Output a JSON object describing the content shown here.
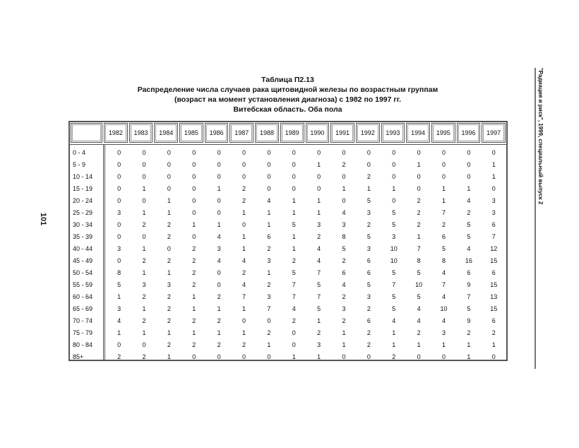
{
  "title": {
    "line1": "Таблица П2.13",
    "line2": "Распределение числа случаев рака щитовидной железы по возрастным группам",
    "line3": "(возраст на момент установления диагноза) с 1982 по 1997 гг.",
    "line4": "Витебская область. Оба пола"
  },
  "page_number": "101",
  "running_header": "\"Радиация и риск\", 1999, специальный выпуск 2",
  "table": {
    "columns": [
      "1982",
      "1983",
      "1984",
      "1985",
      "1986",
      "1987",
      "1988",
      "1989",
      "1990",
      "1991",
      "1992",
      "1993",
      "1994",
      "1995",
      "1996",
      "1997"
    ],
    "rows": [
      {
        "label": "0 - 4",
        "values": [
          "0",
          "0",
          "0",
          "0",
          "0",
          "0",
          "0",
          "0",
          "0",
          "0",
          "0",
          "0",
          "0",
          "0",
          "0",
          "0"
        ]
      },
      {
        "label": "5 - 9",
        "values": [
          "0",
          "0",
          "0",
          "0",
          "0",
          "0",
          "0",
          "0",
          "1",
          "2",
          "0",
          "0",
          "1",
          "0",
          "0",
          "1"
        ]
      },
      {
        "label": "10 - 14",
        "values": [
          "0",
          "0",
          "0",
          "0",
          "0",
          "0",
          "0",
          "0",
          "0",
          "0",
          "2",
          "0",
          "0",
          "0",
          "0",
          "1"
        ]
      },
      {
        "label": "15 - 19",
        "values": [
          "0",
          "1",
          "0",
          "0",
          "1",
          "2",
          "0",
          "0",
          "0",
          "1",
          "1",
          "1",
          "0",
          "1",
          "1",
          "0"
        ]
      },
      {
        "label": "20 - 24",
        "values": [
          "0",
          "0",
          "1",
          "0",
          "0",
          "2",
          "4",
          "1",
          "1",
          "0",
          "5",
          "0",
          "2",
          "1",
          "4",
          "3"
        ]
      },
      {
        "label": "25 - 29",
        "values": [
          "3",
          "1",
          "1",
          "0",
          "0",
          "1",
          "1",
          "1",
          "1",
          "4",
          "3",
          "5",
          "2",
          "7",
          "2",
          "3"
        ]
      },
      {
        "label": "30 - 34",
        "values": [
          "0",
          "2",
          "2",
          "1",
          "1",
          "0",
          "1",
          "5",
          "3",
          "3",
          "2",
          "5",
          "2",
          "2",
          "5",
          "6"
        ]
      },
      {
        "label": "35 - 39",
        "values": [
          "0",
          "0",
          "2",
          "0",
          "4",
          "1",
          "6",
          "1",
          "2",
          "8",
          "5",
          "3",
          "1",
          "6",
          "5",
          "7"
        ]
      },
      {
        "label": "40 - 44",
        "values": [
          "3",
          "1",
          "0",
          "2",
          "3",
          "1",
          "2",
          "1",
          "4",
          "5",
          "3",
          "10",
          "7",
          "5",
          "4",
          "12"
        ]
      },
      {
        "label": "45 - 49",
        "values": [
          "0",
          "2",
          "2",
          "2",
          "4",
          "4",
          "3",
          "2",
          "4",
          "2",
          "6",
          "10",
          "8",
          "8",
          "16",
          "15"
        ]
      },
      {
        "label": "50 - 54",
        "values": [
          "8",
          "1",
          "1",
          "2",
          "0",
          "2",
          "1",
          "5",
          "7",
          "6",
          "6",
          "5",
          "5",
          "4",
          "6",
          "6"
        ]
      },
      {
        "label": "55 - 59",
        "values": [
          "5",
          "3",
          "3",
          "2",
          "0",
          "4",
          "2",
          "7",
          "5",
          "4",
          "5",
          "7",
          "10",
          "7",
          "9",
          "15"
        ]
      },
      {
        "label": "60 - 64",
        "values": [
          "1",
          "2",
          "2",
          "1",
          "2",
          "7",
          "3",
          "7",
          "7",
          "2",
          "3",
          "5",
          "5",
          "4",
          "7",
          "13"
        ]
      },
      {
        "label": "65 - 69",
        "values": [
          "3",
          "1",
          "2",
          "1",
          "1",
          "1",
          "7",
          "4",
          "5",
          "3",
          "2",
          "5",
          "4",
          "10",
          "5",
          "15"
        ]
      },
      {
        "label": "70 - 74",
        "values": [
          "4",
          "2",
          "2",
          "2",
          "2",
          "0",
          "0",
          "2",
          "1",
          "2",
          "6",
          "4",
          "4",
          "4",
          "9",
          "6"
        ]
      },
      {
        "label": "75 - 79",
        "values": [
          "1",
          "1",
          "1",
          "1",
          "1",
          "1",
          "2",
          "0",
          "2",
          "1",
          "2",
          "1",
          "2",
          "3",
          "2",
          "2"
        ]
      },
      {
        "label": "80 - 84",
        "values": [
          "0",
          "0",
          "2",
          "2",
          "2",
          "2",
          "1",
          "0",
          "3",
          "1",
          "2",
          "1",
          "1",
          "1",
          "1",
          "1"
        ]
      },
      {
        "label": "85+",
        "values": [
          "2",
          "2",
          "1",
          "0",
          "0",
          "0",
          "0",
          "1",
          "1",
          "0",
          "0",
          "2",
          "0",
          "0",
          "1",
          "0"
        ]
      }
    ]
  }
}
